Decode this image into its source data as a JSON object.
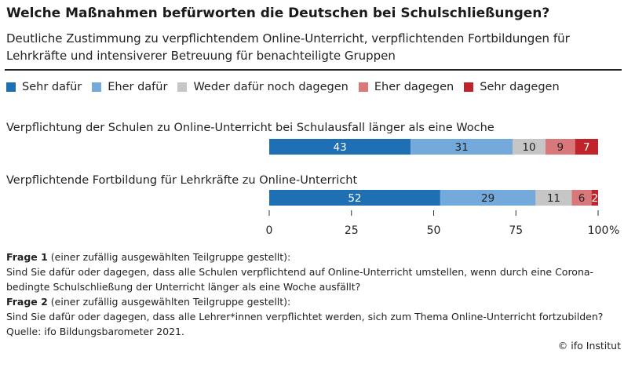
{
  "title": "Welche Maßnahmen befürworten die Deutschen bei Schulschließungen?",
  "subtitle": "Deutliche Zustimmung zu verpflichtendem Online-Unterricht, verpflichtenden Fortbildungen für Lehrkräfte und intensiverer Betreuung für benachteiligte Gruppen",
  "chart_data": {
    "type": "bar",
    "orientation": "horizontal",
    "stacked": true,
    "categories": [
      "Verpflichtung der Schulen zu Online-Unterricht bei Schulausfall länger als eine Woche",
      "Verpflichtende Fortbildung für Lehrkräfte zu Online-Unterricht"
    ],
    "series": [
      {
        "name": "Sehr dafür",
        "color": "#1f6fb4",
        "values": [
          43,
          52
        ]
      },
      {
        "name": "Eher dafür",
        "color": "#73aadb",
        "values": [
          31,
          29
        ]
      },
      {
        "name": "Weder dafür noch dagegen",
        "color": "#c6c6c6",
        "values": [
          10,
          11
        ]
      },
      {
        "name": "Eher dagegen",
        "color": "#d9787b",
        "values": [
          9,
          6
        ]
      },
      {
        "name": "Sehr dagegen",
        "color": "#c0242a",
        "values": [
          7,
          2
        ]
      }
    ],
    "xlim": [
      0,
      100
    ],
    "xticks": [
      "0",
      "25",
      "50",
      "75",
      "100"
    ],
    "xunit": "%",
    "legend_position": "top",
    "grid": false
  },
  "notes": {
    "q1_label": "Frage 1",
    "q1_context": " (einer zufällig ausgewählten Teilgruppe gestellt):",
    "q1_text": "Sind Sie dafür oder dagegen, dass alle Schulen verpflichtend auf Online-Unterricht umstellen, wenn durch eine Corona-bedingte Schulschließung der Unterricht länger als eine Woche ausfällt?",
    "q2_label": "Frage 2",
    "q2_context": " (einer zufällig ausgewählten Teilgruppe gestellt):",
    "q2_text": "Sind Sie dafür oder dagegen, dass alle Lehrer*innen verpflichtet werden, sich zum Thema Online-Unterricht fortzubilden?",
    "source": "Quelle: ifo Bildungsbarometer 2021."
  },
  "brand": "© ifo Institut"
}
